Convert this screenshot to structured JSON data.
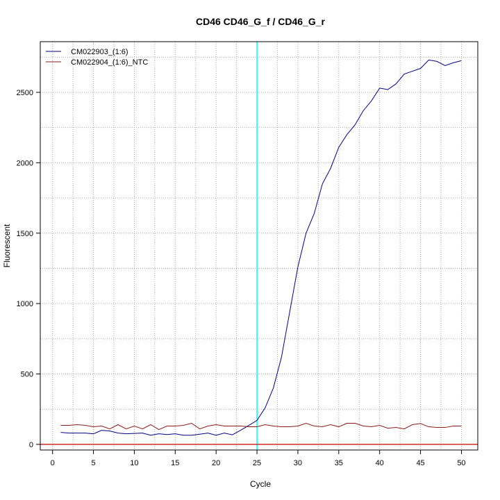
{
  "chart_data": {
    "type": "line",
    "title": "CD46  CD46_G_f / CD46_G_r",
    "xlabel": "Cycle",
    "ylabel": "Fluorescent",
    "xlim": [
      -1.5,
      52
    ],
    "ylim": [
      -40,
      2860
    ],
    "x_ticks": [
      0,
      5,
      10,
      15,
      20,
      25,
      30,
      35,
      40,
      45,
      50
    ],
    "y_ticks": [
      0,
      500,
      1000,
      1500,
      2000,
      2500
    ],
    "x_minor_grid": [
      2.5,
      7.5,
      12.5,
      17.5,
      22.5,
      27.5,
      32.5,
      37.5,
      42.5,
      47.5
    ],
    "y_minor_grid": [
      250,
      750,
      1250,
      1750,
      2250,
      2750
    ],
    "grid": true,
    "legend_position": "top-left",
    "threshold": {
      "axis": "x",
      "value": 25,
      "color": "#00FFFF"
    },
    "baseline": {
      "axis": "y",
      "value": 0,
      "color": "#CC0000"
    },
    "x": [
      1,
      2,
      3,
      4,
      5,
      6,
      7,
      8,
      9,
      10,
      11,
      12,
      13,
      14,
      15,
      16,
      17,
      18,
      19,
      20,
      21,
      22,
      23,
      24,
      25,
      26,
      27,
      28,
      29,
      30,
      31,
      32,
      33,
      34,
      35,
      36,
      37,
      38,
      39,
      40,
      41,
      42,
      43,
      44,
      45,
      46,
      47,
      48,
      49,
      50
    ],
    "series": [
      {
        "name": "CM022903_(1:6)",
        "color": "#000080",
        "values": [
          85,
          80,
          80,
          80,
          75,
          100,
          95,
          80,
          75,
          78,
          80,
          65,
          75,
          70,
          75,
          65,
          65,
          72,
          80,
          65,
          80,
          68,
          100,
          135,
          170,
          260,
          400,
          620,
          940,
          1260,
          1500,
          1640,
          1850,
          1960,
          2110,
          2200,
          2270,
          2370,
          2440,
          2530,
          2520,
          2560,
          2630,
          2650,
          2670,
          2730,
          2720,
          2690,
          2710,
          2725
        ]
      },
      {
        "name": "CM022904_(1:6)_NTC",
        "color": "#8B1A1A",
        "values": [
          135,
          135,
          140,
          135,
          125,
          130,
          110,
          140,
          110,
          130,
          110,
          140,
          105,
          130,
          130,
          135,
          150,
          110,
          130,
          140,
          130,
          130,
          130,
          125,
          125,
          140,
          130,
          125,
          125,
          130,
          150,
          130,
          125,
          140,
          125,
          150,
          150,
          130,
          125,
          135,
          115,
          120,
          110,
          140,
          148,
          125,
          120,
          120,
          130,
          130
        ]
      }
    ]
  }
}
